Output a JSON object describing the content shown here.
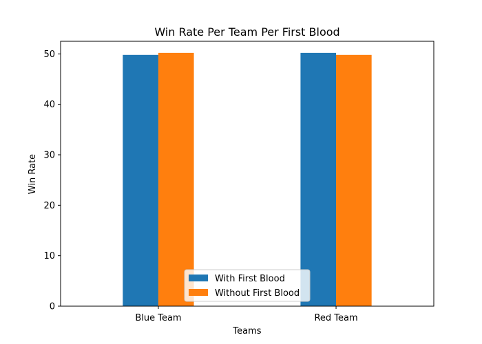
{
  "chart_data": {
    "type": "bar",
    "title": "Win Rate Per Team Per First Blood",
    "xlabel": "Teams",
    "ylabel": "Win Rate",
    "categories": [
      "Blue Team",
      "Red Team"
    ],
    "series": [
      {
        "name": "With First Blood",
        "values": [
          49.8,
          50.2
        ],
        "color": "#1f77b4"
      },
      {
        "name": "Without First Blood",
        "values": [
          50.2,
          49.8
        ],
        "color": "#ff7f0e"
      }
    ],
    "ylim": [
      0,
      52.5
    ],
    "yticks": [
      0,
      10,
      20,
      30,
      40,
      50
    ],
    "grid": false,
    "legend_position": "bottom-center"
  }
}
